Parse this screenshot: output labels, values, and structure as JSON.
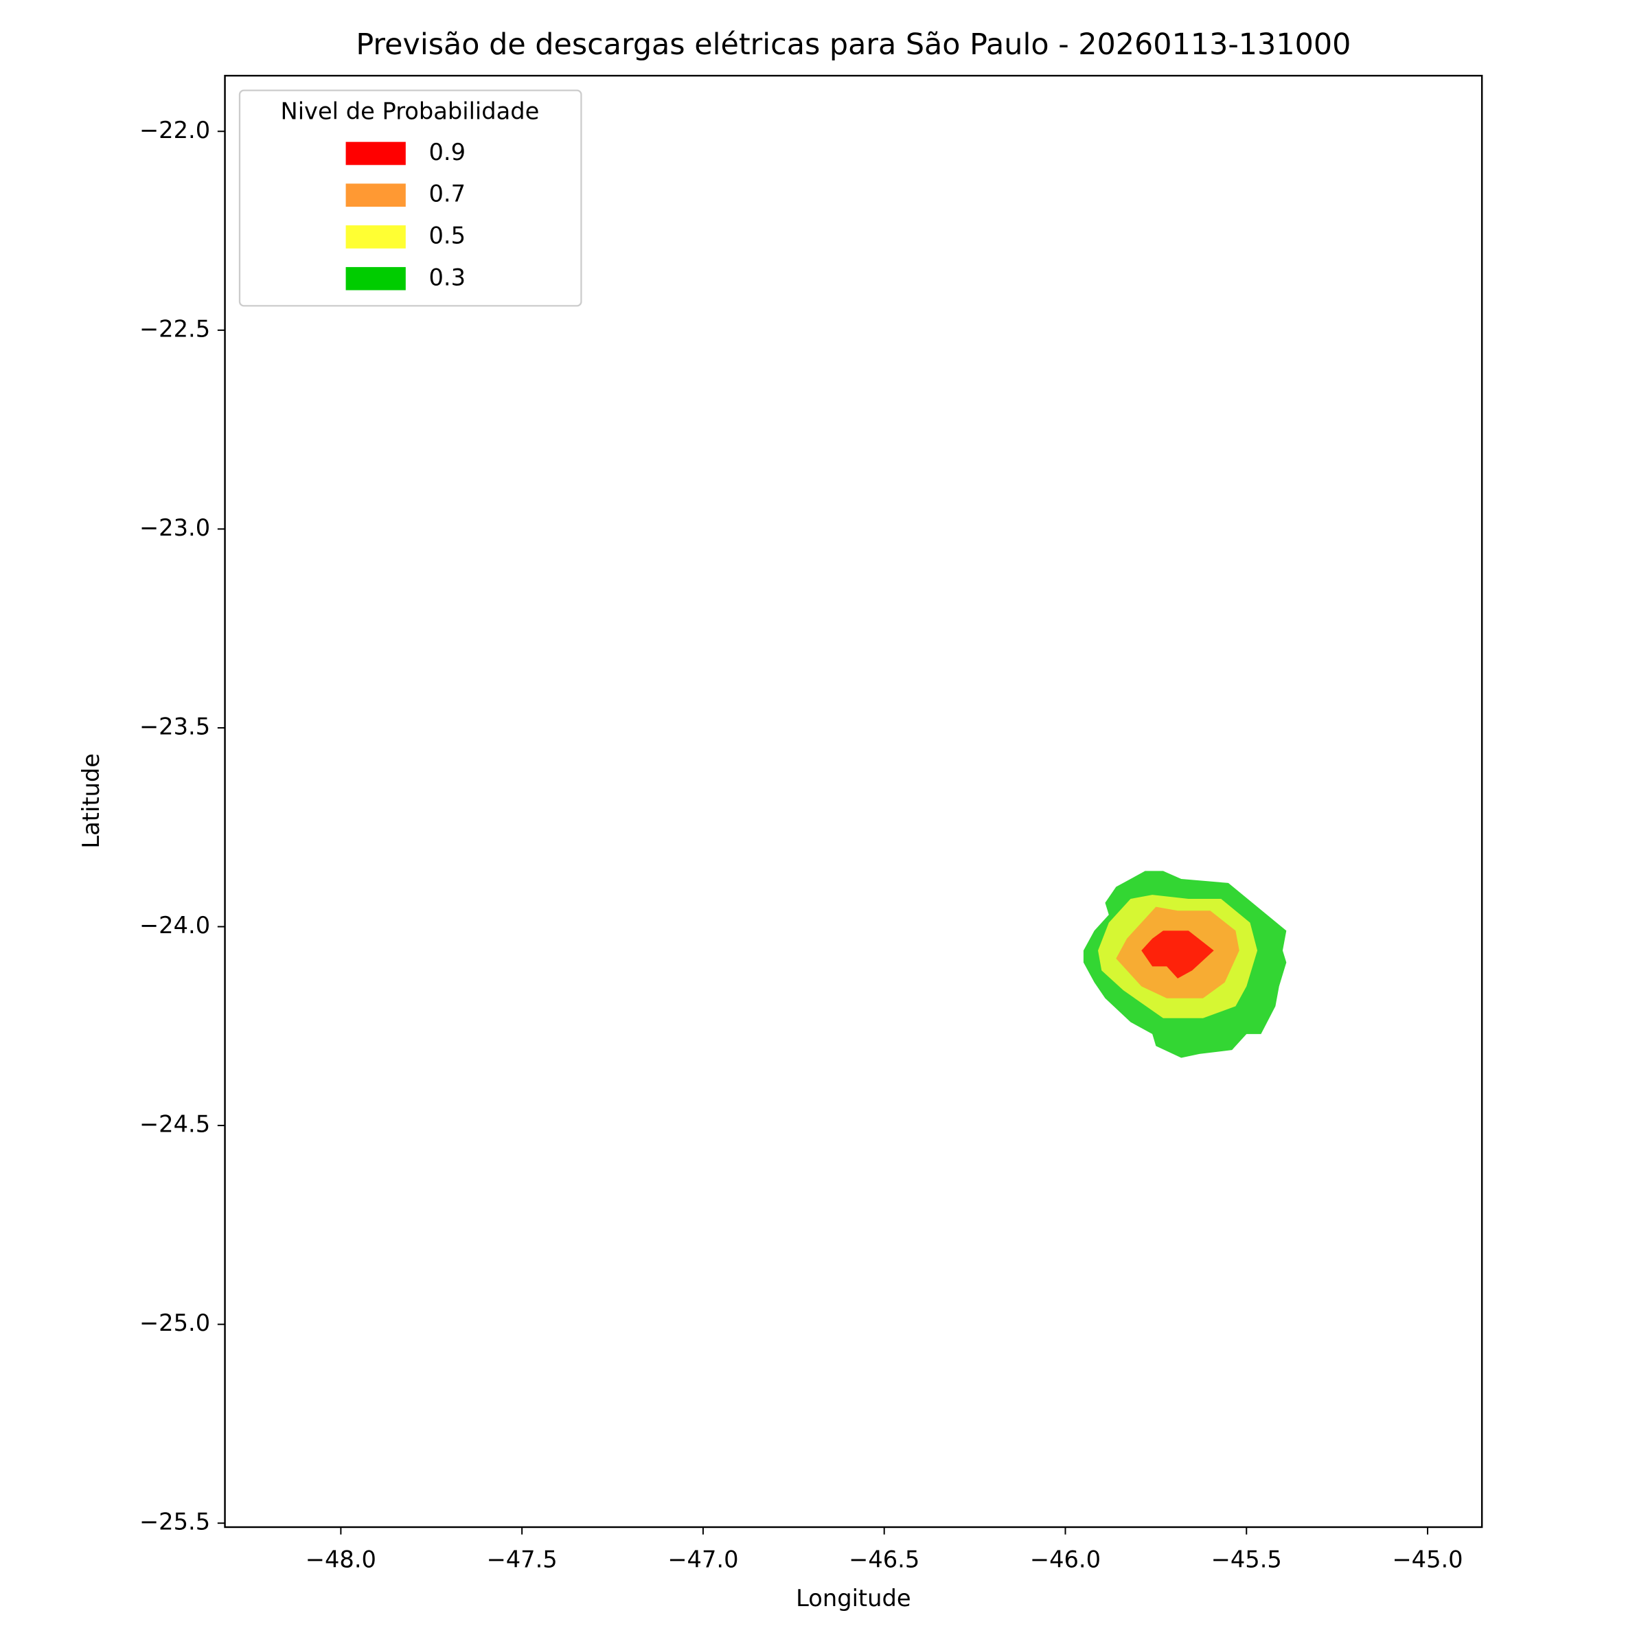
{
  "chart_data": {
    "type": "contourf",
    "title": "Previsão de descargas elétricas para São Paulo - 20260113-131000",
    "xlabel": "Longitude",
    "ylabel": "Latitude",
    "legend_title": "Nivel de Probabilidade",
    "legend_loc": "upper left",
    "alpha": 0.8,
    "xlim": [
      -48.32,
      -44.85
    ],
    "ylim": [
      -25.51,
      -21.86
    ],
    "xticks": [
      {
        "value": -48,
        "label": "−48.0"
      },
      {
        "value": -47.5,
        "label": "−47.5"
      },
      {
        "value": -47,
        "label": "−47.0"
      },
      {
        "value": -46.5,
        "label": "−46.5"
      },
      {
        "value": -46,
        "label": "−46.0"
      },
      {
        "value": -45.5,
        "label": "−45.5"
      },
      {
        "value": -45,
        "label": "−45.0"
      }
    ],
    "yticks": [
      {
        "value": -22,
        "label": "−22.0"
      },
      {
        "value": -22.5,
        "label": "−22.5"
      },
      {
        "value": -23,
        "label": "−23.0"
      },
      {
        "value": -23.5,
        "label": "−23.5"
      },
      {
        "value": -24,
        "label": "−24.0"
      },
      {
        "value": -24.5,
        "label": "−24.5"
      },
      {
        "value": -25,
        "label": "−25.0"
      },
      {
        "value": -25.5,
        "label": "−25.5"
      }
    ],
    "series": [
      {
        "name": "0.9",
        "color": "#ff0000",
        "x": [
          -45.79,
          -45.76,
          -45.73,
          -45.66,
          -45.59,
          -45.65,
          -45.69,
          -45.72,
          -45.76
        ],
        "y": [
          -24.06,
          -24.03,
          -24.01,
          -24.01,
          -24.06,
          -24.11,
          -24.13,
          -24.1,
          -24.1
        ]
      },
      {
        "name": "0.7",
        "color": "#ff9933",
        "x": [
          -45.86,
          -45.83,
          -45.79,
          -45.75,
          -45.69,
          -45.6,
          -45.53,
          -45.52,
          -45.56,
          -45.62,
          -45.72,
          -45.79
        ],
        "y": [
          -24.08,
          -24.03,
          -23.99,
          -23.95,
          -23.96,
          -23.96,
          -24.01,
          -24.06,
          -24.14,
          -24.18,
          -24.18,
          -24.15
        ]
      },
      {
        "name": "0.5",
        "color": "#ffff33",
        "x": [
          -45.91,
          -45.88,
          -45.82,
          -45.76,
          -45.66,
          -45.57,
          -45.49,
          -45.47,
          -45.5,
          -45.53,
          -45.62,
          -45.73,
          -45.84,
          -45.9
        ],
        "y": [
          -24.06,
          -23.99,
          -23.93,
          -23.92,
          -23.93,
          -23.93,
          -23.99,
          -24.06,
          -24.15,
          -24.2,
          -24.23,
          -24.23,
          -24.16,
          -24.11
        ]
      },
      {
        "name": "0.3",
        "color": "#00cc00",
        "x": [
          -45.95,
          -45.92,
          -45.88,
          -45.89,
          -45.86,
          -45.78,
          -45.73,
          -45.68,
          -45.55,
          -45.39,
          -45.4,
          -45.39,
          -45.41,
          -45.42,
          -45.46,
          -45.5,
          -45.54,
          -45.63,
          -45.68,
          -45.75,
          -45.76,
          -45.82,
          -45.89,
          -45.92,
          -45.95
        ],
        "y": [
          -24.06,
          -24.01,
          -23.97,
          -23.94,
          -23.9,
          -23.86,
          -23.86,
          -23.88,
          -23.89,
          -24.01,
          -24.06,
          -24.09,
          -24.15,
          -24.2,
          -24.27,
          -24.27,
          -24.31,
          -24.32,
          -24.33,
          -24.3,
          -24.27,
          -24.24,
          -24.18,
          -24.14,
          -24.09
        ]
      }
    ]
  }
}
